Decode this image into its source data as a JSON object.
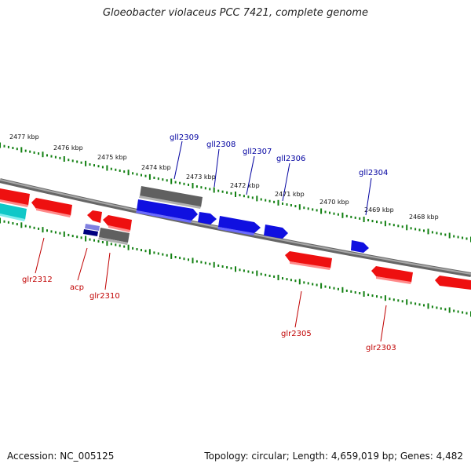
{
  "title": "Gloeobacter violaceus PCC 7421, complete genome",
  "footer": {
    "accession": "Accession: NC_005125",
    "topology": "Topology: circular; Length: 4,659,019 bp; Genes: 4,482"
  },
  "scale_labels": [
    "2477 kbp",
    "2476 kbp",
    "2475 kbp",
    "2474 kbp",
    "2473 kbp",
    "2472 kbp",
    "2471 kbp",
    "2470 kbp",
    "2469 kbp",
    "2468 kbp"
  ],
  "gene_labels_forward": [
    "gll2309",
    "gll2308",
    "gll2307",
    "gll2306",
    "gll2304"
  ],
  "gene_labels_reverse": [
    "glr2312",
    "acp",
    "glr2310",
    "glr2305",
    "glr2303"
  ],
  "colors": {
    "forward_gene": "#1010e0",
    "reverse_gene": "#ee1010",
    "pseudo_gene": "#606060",
    "rna_gene": "#10c8c8",
    "backbone": "#888888",
    "ticks": "#128012",
    "forward_label": "#0000a0",
    "reverse_label": "#c00000"
  }
}
